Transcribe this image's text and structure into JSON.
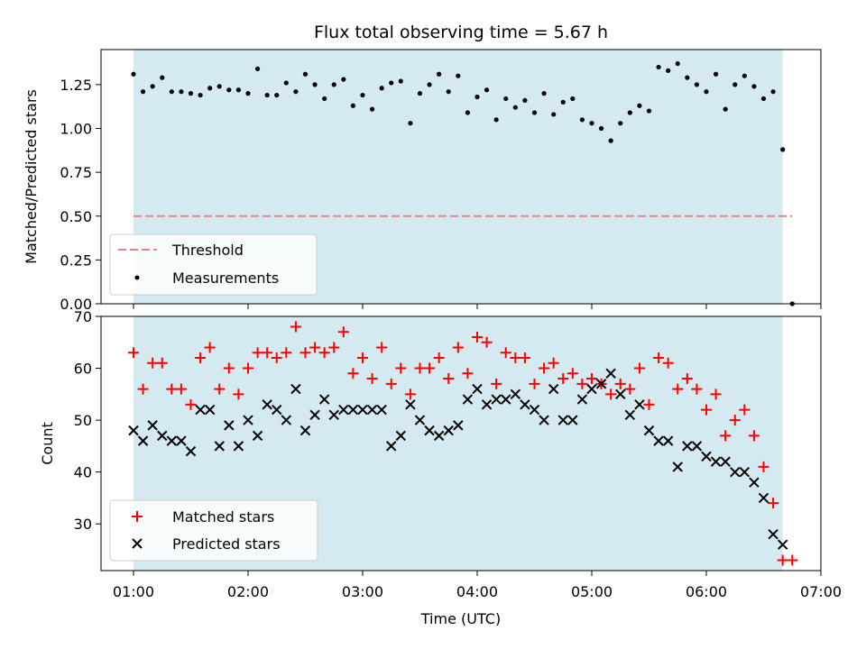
{
  "title": "Flux total observing time = 5.67 h",
  "colors": {
    "span": "#d4eaf0",
    "threshold": "#f08080",
    "matched": "#ff0000",
    "predicted": "#000000",
    "measurement": "#000000"
  },
  "chart_data": [
    {
      "type": "scatter",
      "ylabel": "Matched/Predicted stars",
      "xlabel": "",
      "xlim": [
        "00:43",
        "07:00"
      ],
      "ylim": [
        0,
        1.45
      ],
      "y_ticks": [
        "0.00",
        "0.25",
        "0.50",
        "0.75",
        "1.00",
        "1.25"
      ],
      "y_tick_values": [
        0,
        0.25,
        0.5,
        0.75,
        1.0,
        1.25
      ],
      "shaded_span": [
        "01:00",
        "06:40"
      ],
      "legend": "lower left",
      "threshold": {
        "name": "Threshold",
        "value": 0.5,
        "x_range": [
          "01:00",
          "06:45"
        ]
      },
      "series": [
        {
          "name": "Measurements",
          "marker": "dot",
          "x": [
            "01:00",
            "01:05",
            "01:10",
            "01:15",
            "01:20",
            "01:25",
            "01:30",
            "01:35",
            "01:40",
            "01:45",
            "01:50",
            "01:55",
            "02:00",
            "02:05",
            "02:10",
            "02:15",
            "02:20",
            "02:25",
            "02:30",
            "02:35",
            "02:40",
            "02:45",
            "02:50",
            "02:55",
            "03:00",
            "03:05",
            "03:10",
            "03:15",
            "03:20",
            "03:25",
            "03:30",
            "03:35",
            "03:40",
            "03:45",
            "03:50",
            "03:55",
            "04:00",
            "04:05",
            "04:10",
            "04:15",
            "04:20",
            "04:25",
            "04:30",
            "04:35",
            "04:40",
            "04:45",
            "04:50",
            "04:55",
            "05:00",
            "05:05",
            "05:10",
            "05:15",
            "05:20",
            "05:25",
            "05:30",
            "05:35",
            "05:40",
            "05:45",
            "05:50",
            "05:55",
            "06:00",
            "06:05",
            "06:10",
            "06:15",
            "06:20",
            "06:25",
            "06:30",
            "06:35",
            "06:40",
            "06:45"
          ],
          "y": [
            1.31,
            1.21,
            1.24,
            1.29,
            1.21,
            1.21,
            1.2,
            1.19,
            1.23,
            1.24,
            1.22,
            1.22,
            1.2,
            1.34,
            1.19,
            1.19,
            1.26,
            1.21,
            1.31,
            1.25,
            1.17,
            1.25,
            1.28,
            1.13,
            1.19,
            1.11,
            1.23,
            1.26,
            1.27,
            1.03,
            1.2,
            1.25,
            1.31,
            1.21,
            1.3,
            1.09,
            1.18,
            1.22,
            1.05,
            1.17,
            1.12,
            1.16,
            1.09,
            1.2,
            1.08,
            1.15,
            1.17,
            1.05,
            1.03,
            1.0,
            0.93,
            1.03,
            1.09,
            1.13,
            1.1,
            1.35,
            1.33,
            1.37,
            1.29,
            1.25,
            1.21,
            1.31,
            1.11,
            1.25,
            1.3,
            1.24,
            1.17,
            1.21,
            0.88,
            0.0
          ]
        }
      ]
    },
    {
      "type": "scatter",
      "ylabel": "Count",
      "xlabel": "Time (UTC)",
      "xlim": [
        "00:43",
        "07:00"
      ],
      "ylim": [
        21,
        70
      ],
      "y_ticks": [
        "30",
        "40",
        "50",
        "60",
        "70"
      ],
      "y_tick_values": [
        30,
        40,
        50,
        60,
        70
      ],
      "x_ticks": [
        "01:00",
        "02:00",
        "03:00",
        "04:00",
        "05:00",
        "06:00",
        "07:00"
      ],
      "shaded_span": [
        "01:00",
        "06:40"
      ],
      "legend": "lower left",
      "series": [
        {
          "name": "Matched stars",
          "marker": "+",
          "x": [
            "01:00",
            "01:05",
            "01:10",
            "01:15",
            "01:20",
            "01:25",
            "01:30",
            "01:35",
            "01:40",
            "01:45",
            "01:50",
            "01:55",
            "02:00",
            "02:05",
            "02:10",
            "02:15",
            "02:20",
            "02:25",
            "02:30",
            "02:35",
            "02:40",
            "02:45",
            "02:50",
            "02:55",
            "03:00",
            "03:05",
            "03:10",
            "03:15",
            "03:20",
            "03:25",
            "03:30",
            "03:35",
            "03:40",
            "03:45",
            "03:50",
            "03:55",
            "04:00",
            "04:05",
            "04:10",
            "04:15",
            "04:20",
            "04:25",
            "04:30",
            "04:35",
            "04:40",
            "04:45",
            "04:50",
            "04:55",
            "05:00",
            "05:05",
            "05:10",
            "05:15",
            "05:20",
            "05:25",
            "05:30",
            "05:35",
            "05:40",
            "05:45",
            "05:50",
            "05:55",
            "06:00",
            "06:05",
            "06:10",
            "06:15",
            "06:20",
            "06:25",
            "06:30",
            "06:35",
            "06:40",
            "06:45"
          ],
          "y": [
            63,
            56,
            61,
            61,
            56,
            56,
            53,
            62,
            64,
            56,
            60,
            55,
            60,
            63,
            63,
            62,
            63,
            68,
            63,
            64,
            63,
            64,
            67,
            59,
            62,
            58,
            64,
            57,
            60,
            55,
            60,
            60,
            62,
            58,
            64,
            59,
            66,
            65,
            57,
            63,
            62,
            62,
            57,
            60,
            61,
            58,
            59,
            57,
            58,
            57,
            55,
            57,
            56,
            60,
            53,
            62,
            61,
            56,
            58,
            56,
            52,
            55,
            47,
            50,
            52,
            47,
            41,
            34,
            23,
            23
          ]
        },
        {
          "name": "Predicted stars",
          "marker": "x",
          "x": [
            "01:00",
            "01:05",
            "01:10",
            "01:15",
            "01:20",
            "01:25",
            "01:30",
            "01:35",
            "01:40",
            "01:45",
            "01:50",
            "01:55",
            "02:00",
            "02:05",
            "02:10",
            "02:15",
            "02:20",
            "02:25",
            "02:30",
            "02:35",
            "02:40",
            "02:45",
            "02:50",
            "02:55",
            "03:00",
            "03:05",
            "03:10",
            "03:15",
            "03:20",
            "03:25",
            "03:30",
            "03:35",
            "03:40",
            "03:45",
            "03:50",
            "03:55",
            "04:00",
            "04:05",
            "04:10",
            "04:15",
            "04:20",
            "04:25",
            "04:30",
            "04:35",
            "04:40",
            "04:45",
            "04:50",
            "04:55",
            "05:00",
            "05:05",
            "05:10",
            "05:15",
            "05:20",
            "05:25",
            "05:30",
            "05:35",
            "05:40",
            "05:45",
            "05:50",
            "05:55",
            "06:00",
            "06:05",
            "06:10",
            "06:15",
            "06:20",
            "06:25",
            "06:30",
            "06:35",
            "06:40",
            "06:45"
          ],
          "y": [
            48,
            46,
            49,
            47,
            46,
            46,
            44,
            52,
            52,
            45,
            49,
            45,
            50,
            47,
            53,
            52,
            50,
            56,
            48,
            51,
            54,
            51,
            52,
            52,
            52,
            52,
            52,
            45,
            47,
            53,
            50,
            48,
            47,
            48,
            49,
            54,
            56,
            53,
            54,
            54,
            55,
            53,
            52,
            50,
            56,
            50,
            50,
            54,
            56,
            57,
            59,
            55,
            51,
            53,
            48,
            46,
            46,
            41,
            45,
            45,
            43,
            42,
            42,
            40,
            40,
            38,
            35,
            28,
            26,
            null
          ]
        }
      ]
    }
  ]
}
